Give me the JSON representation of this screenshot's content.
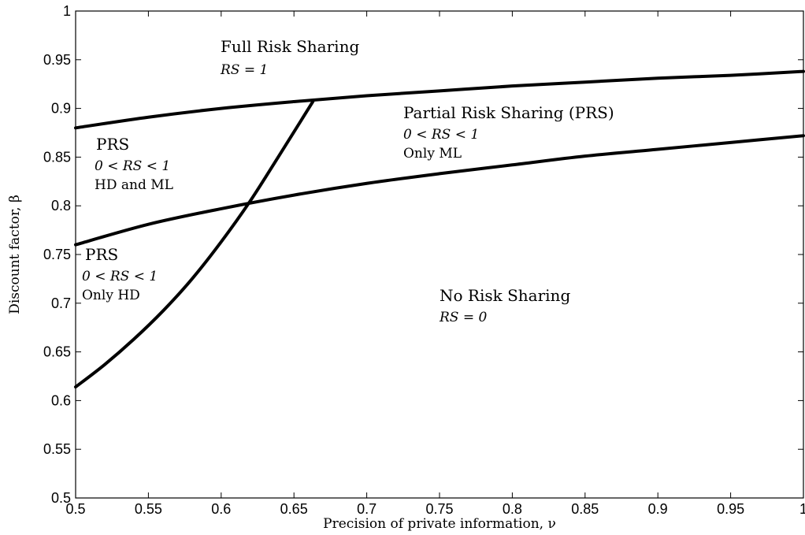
{
  "chart_data": {
    "type": "line",
    "xlabel": "Precision of private information, ν",
    "ylabel": "Discount factor, β",
    "xlim": [
      0.5,
      1
    ],
    "ylim": [
      0.5,
      1
    ],
    "x_ticks": [
      0.5,
      0.55,
      0.6,
      0.65,
      0.7,
      0.75,
      0.8,
      0.85,
      0.9,
      0.95,
      1
    ],
    "x_tick_labels": [
      "0.5",
      "0.55",
      "0.6",
      "0.65",
      "0.7",
      "0.75",
      "0.8",
      "0.85",
      "0.9",
      "0.95",
      "1"
    ],
    "y_ticks": [
      0.5,
      0.55,
      0.6,
      0.65,
      0.7,
      0.75,
      0.8,
      0.85,
      0.9,
      0.95,
      1
    ],
    "y_tick_labels": [
      "0.5",
      "0.55",
      "0.6",
      "0.65",
      "0.7",
      "0.75",
      "0.8",
      "0.85",
      "0.9",
      "0.95",
      "1"
    ],
    "grid": false,
    "series": [
      {
        "x": [
          0.5,
          0.55,
          0.6,
          0.65,
          0.7,
          0.75,
          0.8,
          0.85,
          0.9,
          0.95,
          1.0
        ],
        "y": [
          0.88,
          0.891,
          0.9,
          0.907,
          0.913,
          0.918,
          0.923,
          0.927,
          0.931,
          0.934,
          0.938
        ]
      },
      {
        "x": [
          0.5,
          0.55,
          0.6,
          0.65,
          0.7,
          0.75,
          0.8,
          0.85,
          0.9,
          0.95,
          1.0
        ],
        "y": [
          0.76,
          0.781,
          0.797,
          0.811,
          0.823,
          0.833,
          0.842,
          0.851,
          0.858,
          0.865,
          0.872
        ]
      },
      {
        "x": [
          0.5,
          0.52,
          0.54,
          0.56,
          0.58,
          0.6,
          0.62,
          0.64,
          0.663
        ],
        "y": [
          0.614,
          0.637,
          0.663,
          0.692,
          0.725,
          0.763,
          0.805,
          0.852,
          0.907
        ]
      }
    ],
    "annotations": [
      {
        "id": "full",
        "lines": [
          "Full Risk Sharing",
          "RS = 1"
        ]
      },
      {
        "id": "prs_main",
        "lines": [
          "Partial Risk Sharing (PRS)",
          "0 < RS < 1",
          "Only ML"
        ]
      },
      {
        "id": "prs_hdml",
        "lines": [
          "PRS",
          "0 < RS < 1",
          "HD and ML"
        ]
      },
      {
        "id": "prs_hd",
        "lines": [
          "PRS",
          "0 < RS < 1",
          "Only HD"
        ]
      },
      {
        "id": "none",
        "lines": [
          "No Risk Sharing",
          "RS = 0"
        ]
      }
    ]
  }
}
